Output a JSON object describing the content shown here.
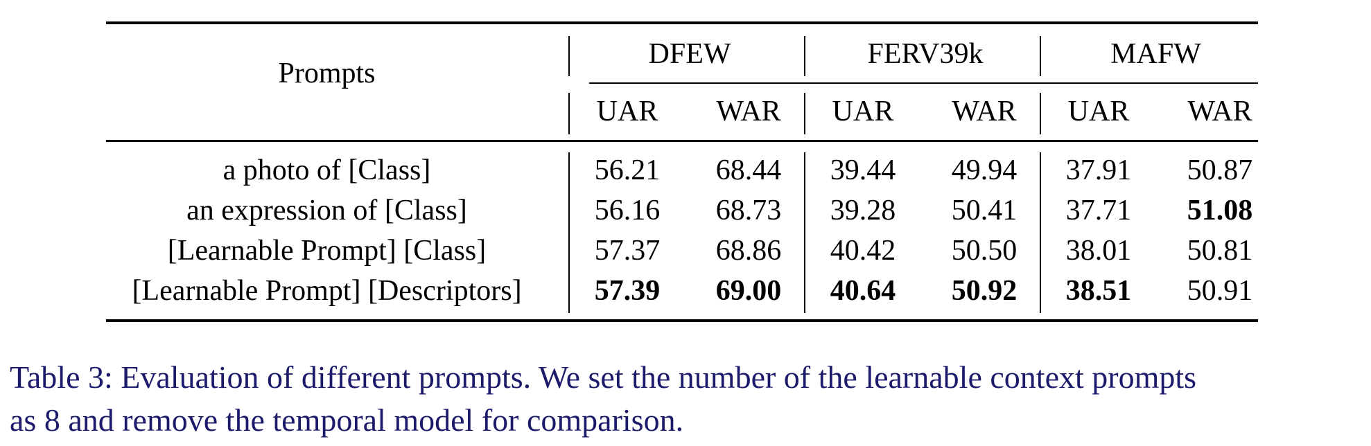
{
  "table": {
    "stub_header": "Prompts",
    "groups": [
      "DFEW",
      "FERV39k",
      "MAFW"
    ],
    "metrics": [
      "UAR",
      "WAR",
      "UAR",
      "WAR",
      "UAR",
      "WAR"
    ],
    "rows": [
      {
        "prompt": "a photo of [Class]",
        "values": [
          "56.21",
          "68.44",
          "39.44",
          "49.94",
          "37.91",
          "50.87"
        ],
        "bold": [
          false,
          false,
          false,
          false,
          false,
          false
        ]
      },
      {
        "prompt": "an expression of [Class]",
        "values": [
          "56.16",
          "68.73",
          "39.28",
          "50.41",
          "37.71",
          "51.08"
        ],
        "bold": [
          false,
          false,
          false,
          false,
          false,
          true
        ]
      },
      {
        "prompt": "[Learnable Prompt] [Class]",
        "values": [
          "57.37",
          "68.86",
          "40.42",
          "50.50",
          "38.01",
          "50.81"
        ],
        "bold": [
          false,
          false,
          false,
          false,
          false,
          false
        ]
      },
      {
        "prompt": "[Learnable Prompt] [Descriptors]",
        "values": [
          "57.39",
          "69.00",
          "40.64",
          "50.92",
          "38.51",
          "50.91"
        ],
        "bold": [
          true,
          true,
          true,
          true,
          true,
          false
        ]
      }
    ]
  },
  "caption": {
    "line1": "Table 3: Evaluation of different prompts. We set the number of the learnable context prompts",
    "line2": "as 8 and remove the temporal model for comparison.",
    "color": "#1b1a6b"
  }
}
